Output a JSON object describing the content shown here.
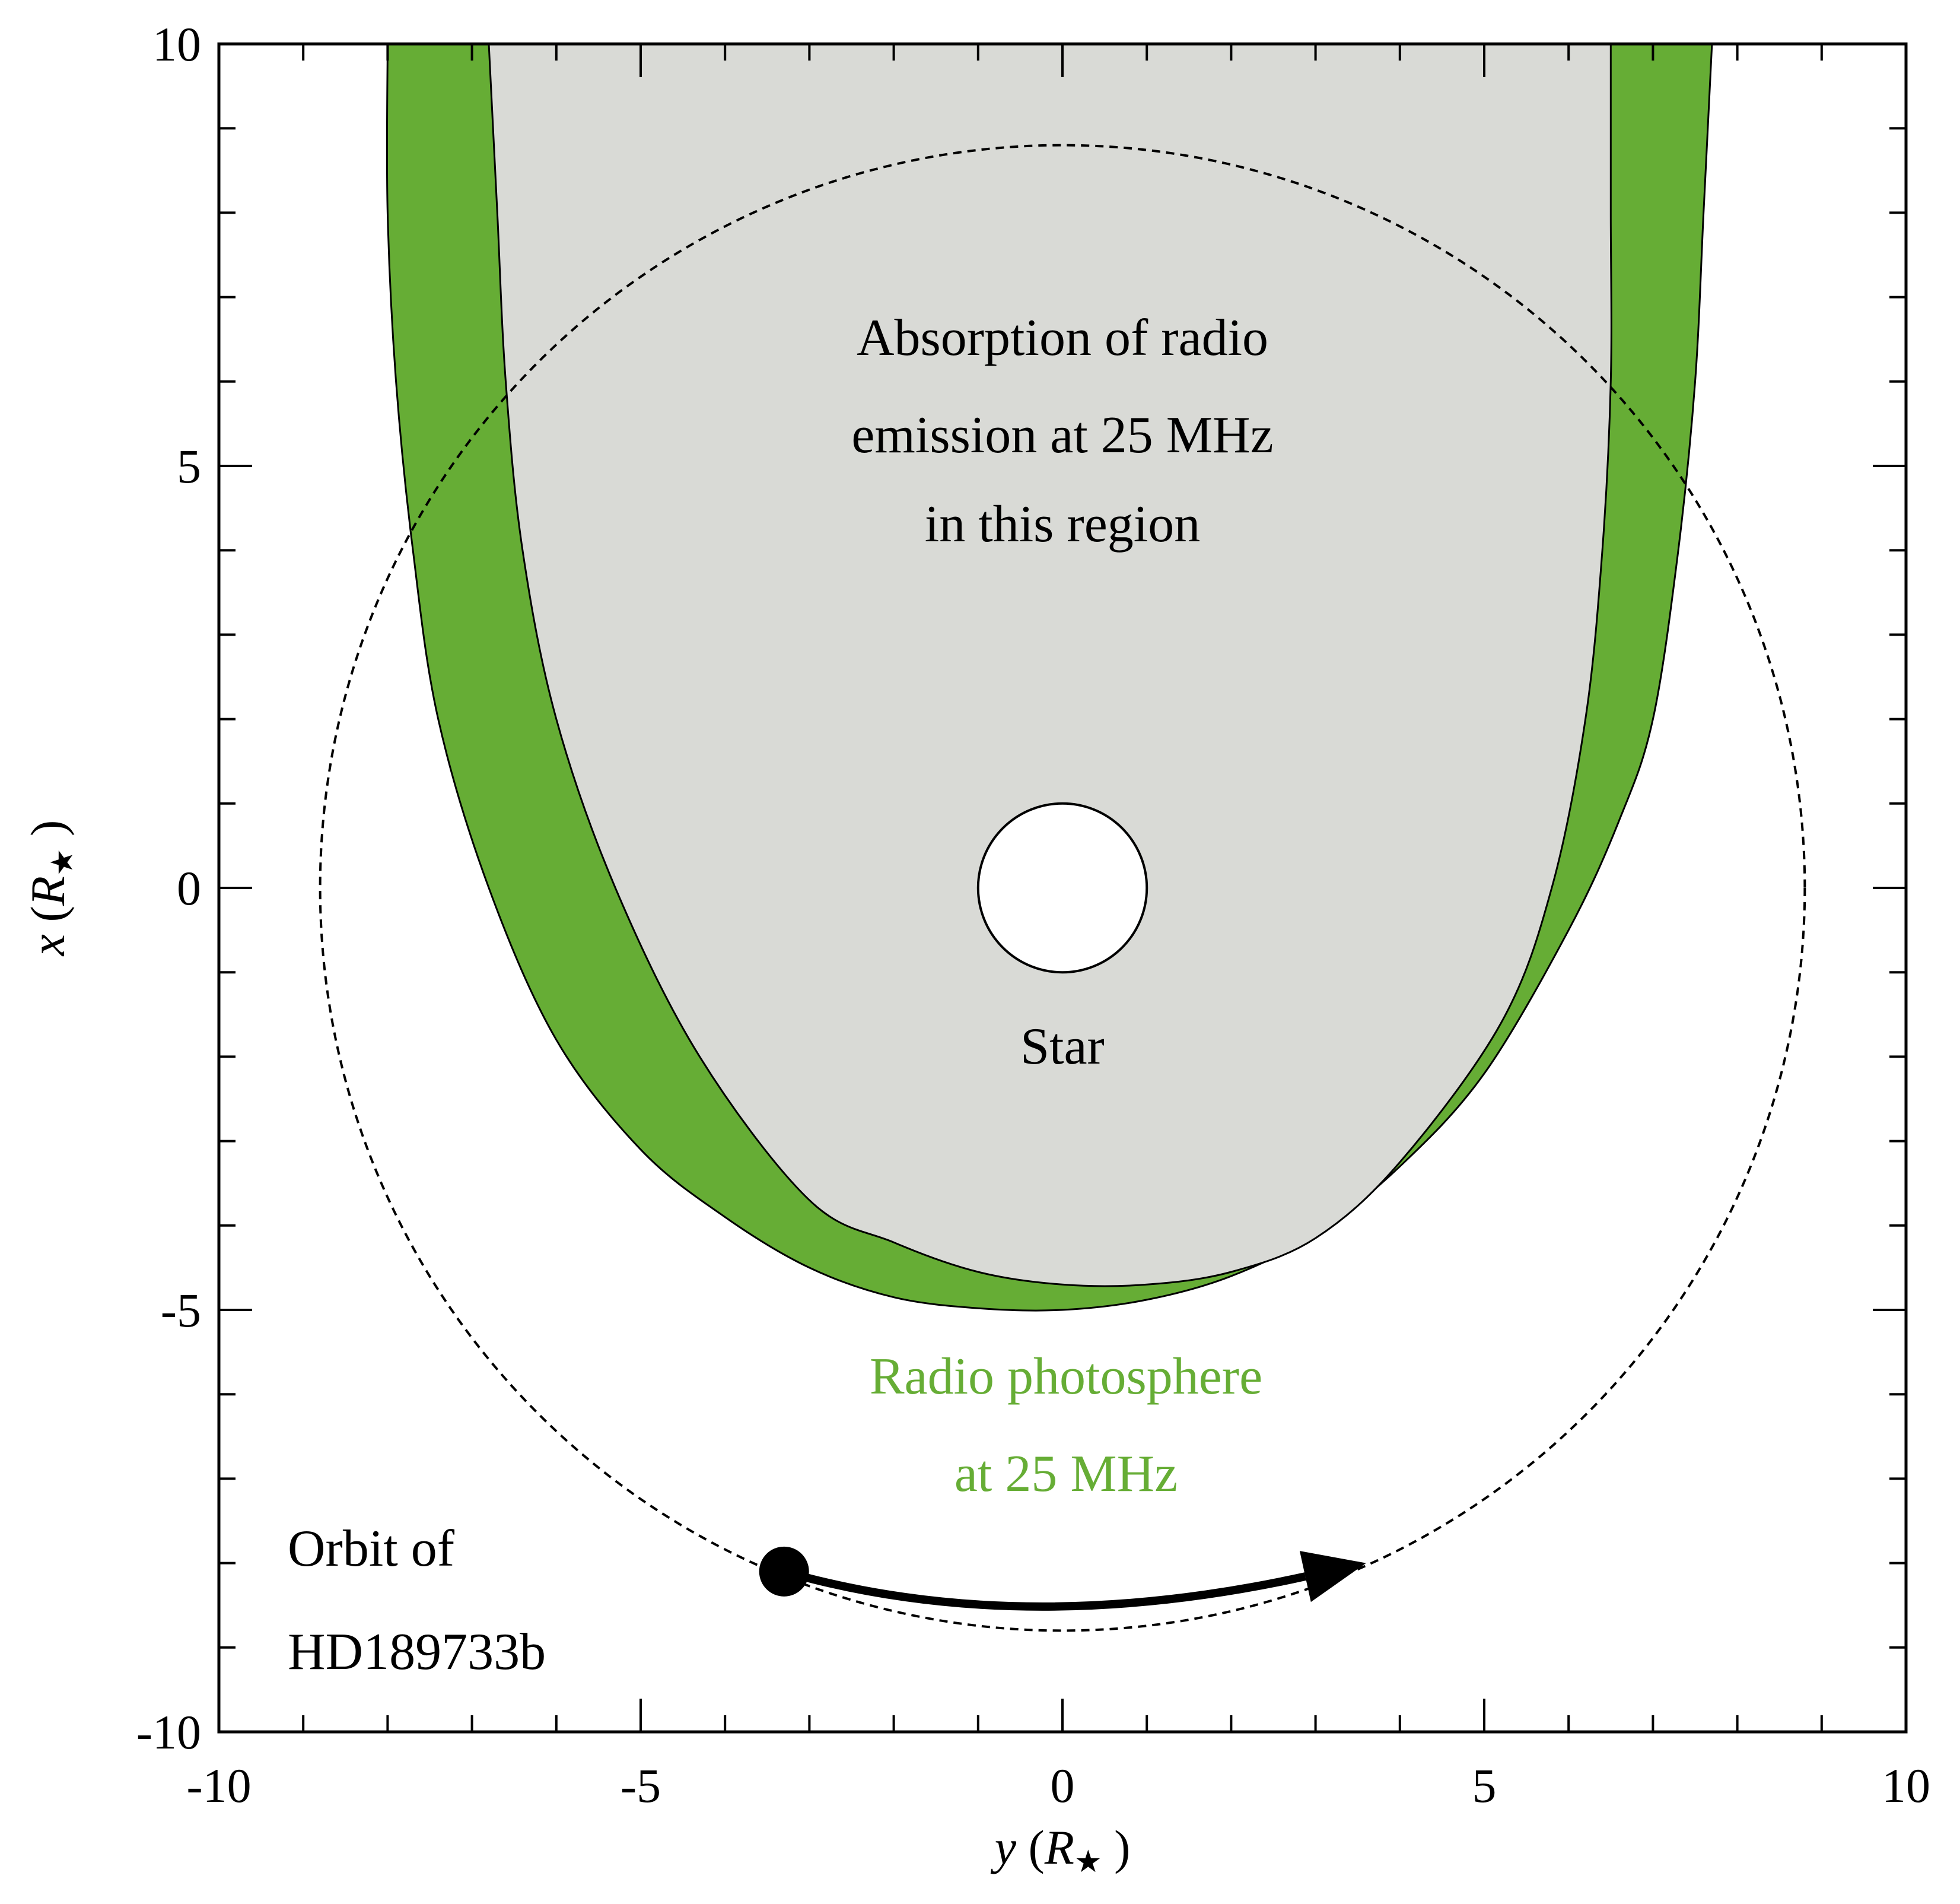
{
  "chart_data": {
    "type": "area",
    "title": "",
    "xlabel": {
      "var": "y",
      "unit": "R",
      "sub": "★"
    },
    "ylabel": {
      "var": "x",
      "unit": "R",
      "sub": "★"
    },
    "xlim": [
      -10,
      10
    ],
    "ylim": [
      -10,
      10
    ],
    "xticks": [
      -10,
      -5,
      0,
      5,
      10
    ],
    "yticks": [
      -10,
      -5,
      0,
      5,
      10
    ],
    "x_tick_labels": [
      "-10",
      "-5",
      "0",
      "5",
      "10"
    ],
    "y_tick_labels": [
      "-10",
      "-5",
      "0",
      "5",
      "10"
    ],
    "minor_tick_step": 1,
    "grid": false,
    "colors": {
      "photosphere": "#66ad35",
      "absorption": "#d9dad6",
      "outline": "#000000"
    },
    "photosphere_outer": [
      [
        -8.0,
        10.0
      ],
      [
        -8.0,
        8.0
      ],
      [
        -7.9,
        6.0
      ],
      [
        -7.7,
        4.0
      ],
      [
        -7.4,
        2.0
      ],
      [
        -6.8,
        0.0
      ],
      [
        -6.0,
        -1.8
      ],
      [
        -5.0,
        -3.1
      ],
      [
        -4.0,
        -3.9
      ],
      [
        -3.0,
        -4.5
      ],
      [
        -2.0,
        -4.85
      ],
      [
        -1.0,
        -4.98
      ],
      [
        0.0,
        -5.0
      ],
      [
        1.0,
        -4.88
      ],
      [
        2.0,
        -4.6
      ],
      [
        3.0,
        -4.1
      ],
      [
        4.0,
        -3.3
      ],
      [
        5.0,
        -2.2
      ],
      [
        6.0,
        -0.5
      ],
      [
        6.6,
        0.8
      ],
      [
        7.0,
        2.0
      ],
      [
        7.3,
        4.0
      ],
      [
        7.5,
        6.0
      ],
      [
        7.6,
        8.0
      ],
      [
        7.7,
        10.0
      ]
    ],
    "absorption_boundary": [
      [
        -6.8,
        10.0
      ],
      [
        -6.7,
        8.0
      ],
      [
        -6.6,
        6.0
      ],
      [
        -6.4,
        4.0
      ],
      [
        -6.0,
        2.0
      ],
      [
        -5.3,
        0.0
      ],
      [
        -4.3,
        -2.0
      ],
      [
        -3.0,
        -3.7
      ],
      [
        -2.0,
        -4.2
      ],
      [
        -1.0,
        -4.55
      ],
      [
        0.0,
        -4.7
      ],
      [
        1.0,
        -4.7
      ],
      [
        2.0,
        -4.55
      ],
      [
        3.0,
        -4.15
      ],
      [
        4.0,
        -3.25
      ],
      [
        5.2,
        -1.6
      ],
      [
        5.8,
        0.0
      ],
      [
        6.2,
        2.0
      ],
      [
        6.4,
        4.0
      ],
      [
        6.5,
        6.0
      ],
      [
        6.5,
        8.0
      ],
      [
        6.5,
        10.0
      ]
    ],
    "star": {
      "center": [
        0,
        0
      ],
      "radius": 1.0,
      "label": "Star"
    },
    "orbit": {
      "center": [
        0,
        0
      ],
      "radius": 8.8,
      "style": "dashed"
    },
    "planet": {
      "position": [
        -3.3,
        -8.1
      ],
      "name": "HD189733b"
    },
    "arrow": {
      "from": [
        -3.3,
        -8.1
      ],
      "to": [
        3.6,
        -8.0
      ],
      "control": [
        -0.5,
        -8.9
      ]
    },
    "annotations": {
      "absorption": [
        "Absorption of radio",
        "emission at 25 MHz",
        "in this region"
      ],
      "photosphere": [
        "Radio photosphere",
        "at 25 MHz"
      ],
      "orbit": [
        "Orbit of",
        "HD189733b"
      ]
    }
  }
}
